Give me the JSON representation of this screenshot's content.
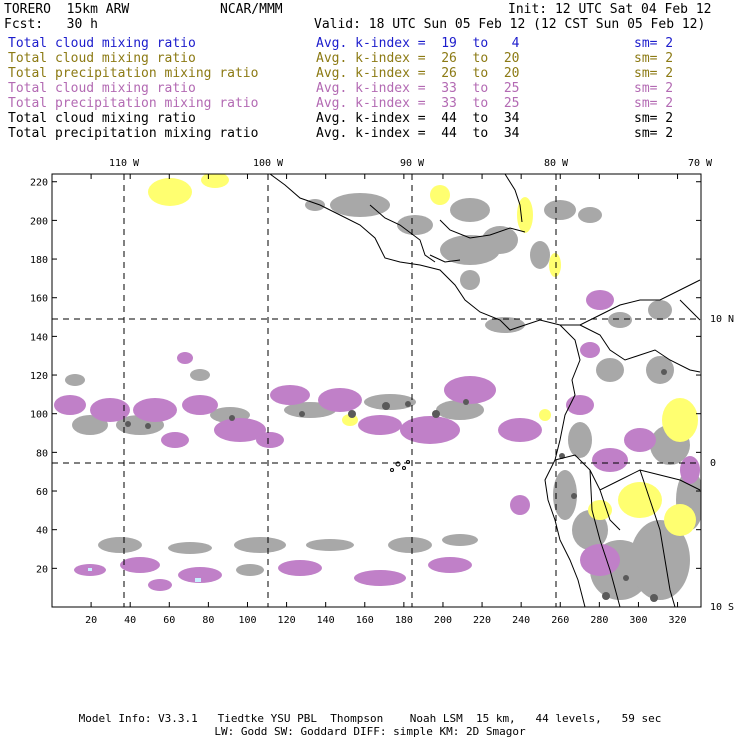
{
  "header": {
    "model": "TORERO  15km ARW",
    "org": "NCAR/MMM",
    "init": "Init: 12 UTC Sat 04 Feb 12",
    "fcst": "Fcst:   30 h",
    "valid": "Valid: 18 UTC Sun 05 Feb 12 (12 CST Sun 05 Feb 12)"
  },
  "legend": [
    {
      "field": "Total cloud mixing ratio",
      "kindex": "Avg. k-index =  19  to   4",
      "sm": "sm= 2",
      "color": "#1c1ccc"
    },
    {
      "field": "Total cloud mixing ratio",
      "kindex": "Avg. k-index =  26  to  20",
      "sm": "sm= 2",
      "color": "#8c7a14"
    },
    {
      "field": "Total precipitation mixing ratio",
      "kindex": "Avg. k-index =  26  to  20",
      "sm": "sm= 2",
      "color": "#8c7a14"
    },
    {
      "field": "Total cloud mixing ratio",
      "kindex": "Avg. k-index =  33  to  25",
      "sm": "sm= 2",
      "color": "#b36ab3"
    },
    {
      "field": "Total precipitation mixing ratio",
      "kindex": "Avg. k-index =  33  to  25",
      "sm": "sm= 2",
      "color": "#b36ab3"
    },
    {
      "field": "Total cloud mixing ratio",
      "kindex": "Avg. k-index =  44  to  34",
      "sm": "sm= 2",
      "color": "#000000"
    },
    {
      "field": "Total precipitation mixing ratio",
      "kindex": "Avg. k-index =  44  to  34",
      "sm": "sm= 2",
      "color": "#000000"
    }
  ],
  "map": {
    "lon_labels": [
      "110 W",
      "100 W",
      "90 W",
      "80 W",
      "70 W"
    ],
    "lat_labels": [
      "10 N",
      "0",
      "10 S"
    ],
    "x_ticks": [
      "20",
      "40",
      "60",
      "80",
      "100",
      "120",
      "140",
      "160",
      "180",
      "200",
      "220",
      "240",
      "260",
      "280",
      "300",
      "320"
    ],
    "y_ticks": [
      "20",
      "40",
      "60",
      "80",
      "100",
      "120",
      "140",
      "160",
      "180",
      "200",
      "220"
    ],
    "colors": {
      "gray": "#a8a8a8",
      "dark_gray": "#5a5a5a",
      "yellow": "#ffff70",
      "purple": "#c080c8",
      "cyan": "#c8f0ff"
    }
  },
  "footer": {
    "line1": "Model Info: V3.3.1   Tiedtke YSU PBL  Thompson    Noah LSM  15 km,   44 levels,   59 sec",
    "line2": "LW: Godd SW: Goddard DIFF: simple KM: 2D Smagor"
  }
}
